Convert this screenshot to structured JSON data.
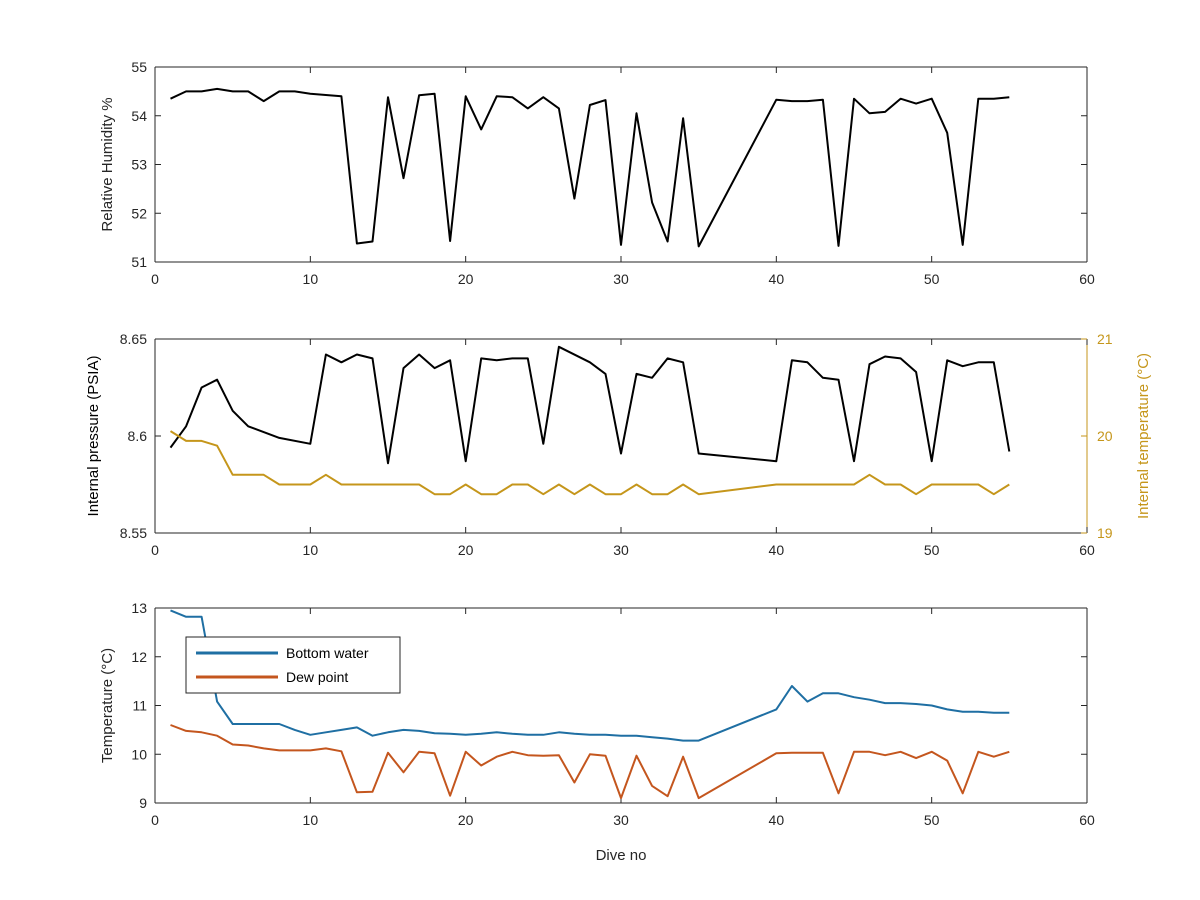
{
  "figure": {
    "xlabel": "Dive no"
  },
  "colors": {
    "axis": "#262626",
    "black_series": "#000000",
    "temperature_right": "#C5961B",
    "bottom_water": "#1F6FA3",
    "dew_point": "#C4561E"
  },
  "chart_data": [
    {
      "type": "line",
      "title": "",
      "xlabel": "",
      "ylabel": "Relative Humidity %",
      "xlim": [
        0,
        60
      ],
      "ylim": [
        51,
        55
      ],
      "xticks": [
        "0",
        "10",
        "20",
        "30",
        "40",
        "50",
        "60"
      ],
      "yticks": [
        "51",
        "52",
        "53",
        "54",
        "55"
      ],
      "grid": false,
      "legend": "none",
      "series": [
        {
          "axis": "left",
          "x": [
            1,
            2,
            3,
            4,
            5,
            6,
            7,
            8,
            9,
            10,
            12,
            13,
            14,
            15,
            16,
            17,
            18,
            19,
            20,
            21,
            22,
            23,
            24,
            25,
            26,
            27,
            28,
            29,
            30,
            31,
            32,
            33,
            34,
            35,
            40,
            41,
            42,
            43,
            44,
            45,
            46,
            47,
            48,
            49,
            50,
            51,
            52,
            53,
            54,
            55
          ],
          "values": [
            54.35,
            54.5,
            54.5,
            54.55,
            54.5,
            54.5,
            54.3,
            54.5,
            54.5,
            54.45,
            54.4,
            51.38,
            51.42,
            54.38,
            52.72,
            54.42,
            54.45,
            51.43,
            54.4,
            53.72,
            54.4,
            54.38,
            54.15,
            54.38,
            54.15,
            52.3,
            54.22,
            54.32,
            51.35,
            54.05,
            52.22,
            51.42,
            53.95,
            51.32,
            54.33,
            54.3,
            54.3,
            54.33,
            51.33,
            54.35,
            54.05,
            54.08,
            54.35,
            54.25,
            54.35,
            53.65,
            51.35,
            54.35,
            54.35,
            54.38
          ]
        }
      ]
    },
    {
      "type": "line",
      "title": "",
      "xlabel": "",
      "ylabel": "Internal pressure (PSIA)",
      "ylabel_right": "Internal temperature (°C)",
      "xlim": [
        0,
        60
      ],
      "ylim": [
        8.55,
        8.65
      ],
      "ylim_right": [
        19,
        21
      ],
      "xticks": [
        "0",
        "10",
        "20",
        "30",
        "40",
        "50",
        "60"
      ],
      "yticks": [
        "8.55",
        "8.6",
        "8.65"
      ],
      "yticks_right": [
        "19",
        "20",
        "21"
      ],
      "grid": false,
      "legend": "none",
      "series": [
        {
          "axis": "left",
          "x": [
            1,
            2,
            3,
            4,
            5,
            6,
            8,
            10,
            11,
            12,
            13,
            14,
            15,
            16,
            17,
            18,
            19,
            20,
            21,
            22,
            23,
            24,
            25,
            26,
            28,
            29,
            30,
            31,
            32,
            33,
            34,
            35,
            40,
            41,
            42,
            43,
            44,
            45,
            46,
            47,
            48,
            49,
            50,
            51,
            52,
            53,
            54,
            55
          ],
          "values": [
            8.594,
            8.605,
            8.625,
            8.629,
            8.613,
            8.605,
            8.599,
            8.596,
            8.642,
            8.638,
            8.642,
            8.64,
            8.586,
            8.635,
            8.642,
            8.635,
            8.639,
            8.587,
            8.64,
            8.639,
            8.64,
            8.64,
            8.596,
            8.646,
            8.638,
            8.632,
            8.591,
            8.632,
            8.63,
            8.64,
            8.638,
            8.591,
            8.587,
            8.639,
            8.638,
            8.63,
            8.629,
            8.587,
            8.637,
            8.641,
            8.64,
            8.633,
            8.587,
            8.639,
            8.636,
            8.638,
            8.638,
            8.592
          ]
        },
        {
          "axis": "right",
          "x": [
            1,
            2,
            3,
            4,
            5,
            6,
            7,
            8,
            9,
            10,
            11,
            12,
            13,
            14,
            15,
            16,
            17,
            18,
            19,
            20,
            21,
            22,
            23,
            24,
            25,
            26,
            27,
            28,
            29,
            30,
            31,
            32,
            33,
            34,
            35,
            40,
            41,
            42,
            43,
            44,
            45,
            46,
            47,
            48,
            49,
            50,
            51,
            52,
            53,
            54,
            55
          ],
          "values": [
            20.05,
            19.95,
            19.95,
            19.9,
            19.6,
            19.6,
            19.6,
            19.5,
            19.5,
            19.5,
            19.6,
            19.5,
            19.5,
            19.5,
            19.5,
            19.5,
            19.5,
            19.4,
            19.4,
            19.5,
            19.4,
            19.4,
            19.5,
            19.5,
            19.4,
            19.5,
            19.4,
            19.5,
            19.4,
            19.4,
            19.5,
            19.4,
            19.4,
            19.5,
            19.4,
            19.5,
            19.5,
            19.5,
            19.5,
            19.5,
            19.5,
            19.6,
            19.5,
            19.5,
            19.4,
            19.5,
            19.5,
            19.5,
            19.5,
            19.4,
            19.5
          ]
        }
      ]
    },
    {
      "type": "line",
      "title": "",
      "xlabel": "Dive no",
      "ylabel": "Temperature (°C)",
      "xlim": [
        0,
        60
      ],
      "ylim": [
        9,
        13
      ],
      "xticks": [
        "0",
        "10",
        "20",
        "30",
        "40",
        "50",
        "60"
      ],
      "yticks": [
        "9",
        "10",
        "11",
        "12",
        "13"
      ],
      "grid": false,
      "legend": "top-left",
      "series": [
        {
          "name": "Bottom water",
          "axis": "left",
          "x": [
            1,
            2,
            3,
            4,
            5,
            6,
            7,
            8,
            9,
            10,
            11,
            12,
            13,
            14,
            15,
            16,
            17,
            18,
            19,
            20,
            21,
            22,
            23,
            24,
            25,
            26,
            27,
            28,
            29,
            30,
            31,
            32,
            33,
            34,
            35,
            40,
            41,
            42,
            43,
            44,
            45,
            46,
            47,
            48,
            49,
            50,
            51,
            52,
            53,
            54,
            55
          ],
          "values": [
            12.95,
            12.82,
            12.82,
            11.08,
            10.62,
            10.62,
            10.62,
            10.62,
            10.5,
            10.4,
            10.45,
            10.5,
            10.55,
            10.38,
            10.45,
            10.5,
            10.48,
            10.43,
            10.42,
            10.4,
            10.42,
            10.45,
            10.42,
            10.4,
            10.4,
            10.45,
            10.42,
            10.4,
            10.4,
            10.38,
            10.38,
            10.35,
            10.32,
            10.28,
            10.28,
            10.92,
            11.4,
            11.08,
            11.25,
            11.25,
            11.17,
            11.12,
            11.05,
            11.05,
            11.03,
            11.0,
            10.92,
            10.87,
            10.87,
            10.85,
            10.85
          ]
        },
        {
          "name": "Dew point",
          "axis": "left",
          "x": [
            1,
            2,
            3,
            4,
            5,
            6,
            7,
            8,
            9,
            10,
            11,
            12,
            13,
            14,
            15,
            16,
            17,
            18,
            19,
            20,
            21,
            22,
            23,
            24,
            25,
            26,
            27,
            28,
            29,
            30,
            31,
            32,
            33,
            34,
            35,
            40,
            41,
            42,
            43,
            44,
            45,
            46,
            47,
            48,
            49,
            50,
            51,
            52,
            53,
            54,
            55
          ],
          "values": [
            10.6,
            10.48,
            10.45,
            10.38,
            10.2,
            10.18,
            10.12,
            10.08,
            10.08,
            10.08,
            10.12,
            10.06,
            9.22,
            9.23,
            10.03,
            9.63,
            10.05,
            10.02,
            9.15,
            10.05,
            9.77,
            9.95,
            10.05,
            9.98,
            9.97,
            9.98,
            9.42,
            10.0,
            9.97,
            9.1,
            9.97,
            9.35,
            9.14,
            9.95,
            9.1,
            10.02,
            10.03,
            10.03,
            10.03,
            9.2,
            10.05,
            10.05,
            9.98,
            10.05,
            9.92,
            10.05,
            9.87,
            9.2,
            10.05,
            9.95,
            10.05
          ]
        }
      ]
    }
  ]
}
